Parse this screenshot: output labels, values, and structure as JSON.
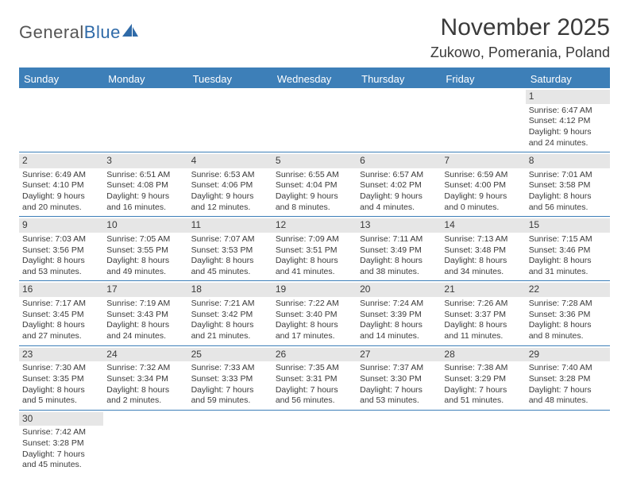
{
  "logo": {
    "part1": "General",
    "part2": "Blue"
  },
  "header": {
    "month_title": "November 2025",
    "location": "Zukowo, Pomerania, Poland"
  },
  "colors": {
    "header_bar": "#3d7fb8",
    "daynum_bg": "#e6e6e6",
    "text": "#3a3a3a",
    "logo_blue": "#2f6aa8"
  },
  "weekdays": [
    "Sunday",
    "Monday",
    "Tuesday",
    "Wednesday",
    "Thursday",
    "Friday",
    "Saturday"
  ],
  "weeks": [
    [
      null,
      null,
      null,
      null,
      null,
      null,
      {
        "n": "1",
        "sr": "Sunrise: 6:47 AM",
        "ss": "Sunset: 4:12 PM",
        "dl": "Daylight: 9 hours and 24 minutes."
      }
    ],
    [
      {
        "n": "2",
        "sr": "Sunrise: 6:49 AM",
        "ss": "Sunset: 4:10 PM",
        "dl": "Daylight: 9 hours and 20 minutes."
      },
      {
        "n": "3",
        "sr": "Sunrise: 6:51 AM",
        "ss": "Sunset: 4:08 PM",
        "dl": "Daylight: 9 hours and 16 minutes."
      },
      {
        "n": "4",
        "sr": "Sunrise: 6:53 AM",
        "ss": "Sunset: 4:06 PM",
        "dl": "Daylight: 9 hours and 12 minutes."
      },
      {
        "n": "5",
        "sr": "Sunrise: 6:55 AM",
        "ss": "Sunset: 4:04 PM",
        "dl": "Daylight: 9 hours and 8 minutes."
      },
      {
        "n": "6",
        "sr": "Sunrise: 6:57 AM",
        "ss": "Sunset: 4:02 PM",
        "dl": "Daylight: 9 hours and 4 minutes."
      },
      {
        "n": "7",
        "sr": "Sunrise: 6:59 AM",
        "ss": "Sunset: 4:00 PM",
        "dl": "Daylight: 9 hours and 0 minutes."
      },
      {
        "n": "8",
        "sr": "Sunrise: 7:01 AM",
        "ss": "Sunset: 3:58 PM",
        "dl": "Daylight: 8 hours and 56 minutes."
      }
    ],
    [
      {
        "n": "9",
        "sr": "Sunrise: 7:03 AM",
        "ss": "Sunset: 3:56 PM",
        "dl": "Daylight: 8 hours and 53 minutes."
      },
      {
        "n": "10",
        "sr": "Sunrise: 7:05 AM",
        "ss": "Sunset: 3:55 PM",
        "dl": "Daylight: 8 hours and 49 minutes."
      },
      {
        "n": "11",
        "sr": "Sunrise: 7:07 AM",
        "ss": "Sunset: 3:53 PM",
        "dl": "Daylight: 8 hours and 45 minutes."
      },
      {
        "n": "12",
        "sr": "Sunrise: 7:09 AM",
        "ss": "Sunset: 3:51 PM",
        "dl": "Daylight: 8 hours and 41 minutes."
      },
      {
        "n": "13",
        "sr": "Sunrise: 7:11 AM",
        "ss": "Sunset: 3:49 PM",
        "dl": "Daylight: 8 hours and 38 minutes."
      },
      {
        "n": "14",
        "sr": "Sunrise: 7:13 AM",
        "ss": "Sunset: 3:48 PM",
        "dl": "Daylight: 8 hours and 34 minutes."
      },
      {
        "n": "15",
        "sr": "Sunrise: 7:15 AM",
        "ss": "Sunset: 3:46 PM",
        "dl": "Daylight: 8 hours and 31 minutes."
      }
    ],
    [
      {
        "n": "16",
        "sr": "Sunrise: 7:17 AM",
        "ss": "Sunset: 3:45 PM",
        "dl": "Daylight: 8 hours and 27 minutes."
      },
      {
        "n": "17",
        "sr": "Sunrise: 7:19 AM",
        "ss": "Sunset: 3:43 PM",
        "dl": "Daylight: 8 hours and 24 minutes."
      },
      {
        "n": "18",
        "sr": "Sunrise: 7:21 AM",
        "ss": "Sunset: 3:42 PM",
        "dl": "Daylight: 8 hours and 21 minutes."
      },
      {
        "n": "19",
        "sr": "Sunrise: 7:22 AM",
        "ss": "Sunset: 3:40 PM",
        "dl": "Daylight: 8 hours and 17 minutes."
      },
      {
        "n": "20",
        "sr": "Sunrise: 7:24 AM",
        "ss": "Sunset: 3:39 PM",
        "dl": "Daylight: 8 hours and 14 minutes."
      },
      {
        "n": "21",
        "sr": "Sunrise: 7:26 AM",
        "ss": "Sunset: 3:37 PM",
        "dl": "Daylight: 8 hours and 11 minutes."
      },
      {
        "n": "22",
        "sr": "Sunrise: 7:28 AM",
        "ss": "Sunset: 3:36 PM",
        "dl": "Daylight: 8 hours and 8 minutes."
      }
    ],
    [
      {
        "n": "23",
        "sr": "Sunrise: 7:30 AM",
        "ss": "Sunset: 3:35 PM",
        "dl": "Daylight: 8 hours and 5 minutes."
      },
      {
        "n": "24",
        "sr": "Sunrise: 7:32 AM",
        "ss": "Sunset: 3:34 PM",
        "dl": "Daylight: 8 hours and 2 minutes."
      },
      {
        "n": "25",
        "sr": "Sunrise: 7:33 AM",
        "ss": "Sunset: 3:33 PM",
        "dl": "Daylight: 7 hours and 59 minutes."
      },
      {
        "n": "26",
        "sr": "Sunrise: 7:35 AM",
        "ss": "Sunset: 3:31 PM",
        "dl": "Daylight: 7 hours and 56 minutes."
      },
      {
        "n": "27",
        "sr": "Sunrise: 7:37 AM",
        "ss": "Sunset: 3:30 PM",
        "dl": "Daylight: 7 hours and 53 minutes."
      },
      {
        "n": "28",
        "sr": "Sunrise: 7:38 AM",
        "ss": "Sunset: 3:29 PM",
        "dl": "Daylight: 7 hours and 51 minutes."
      },
      {
        "n": "29",
        "sr": "Sunrise: 7:40 AM",
        "ss": "Sunset: 3:28 PM",
        "dl": "Daylight: 7 hours and 48 minutes."
      }
    ],
    [
      {
        "n": "30",
        "sr": "Sunrise: 7:42 AM",
        "ss": "Sunset: 3:28 PM",
        "dl": "Daylight: 7 hours and 45 minutes."
      },
      null,
      null,
      null,
      null,
      null,
      null
    ]
  ]
}
